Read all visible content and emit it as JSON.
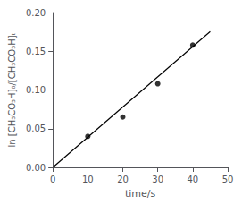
{
  "chart_data": {
    "type": "scatter",
    "xlabel": "time/s",
    "ylabel": "ln [CH₃CO₃H]₀/[CH₃CO₃H]ₜ",
    "series": [
      {
        "type": "line",
        "color": "#000000",
        "x": [
          0,
          45
        ],
        "values": [
          0.0,
          0.1755
        ]
      },
      {
        "type": "scatter",
        "color": "#000000",
        "x": [
          10,
          20,
          30,
          40
        ],
        "values": [
          0.04,
          0.065,
          0.108,
          0.158
        ]
      }
    ],
    "xlim": [
      0,
      50
    ],
    "ylim": [
      0.0,
      0.2
    ],
    "xticks": [
      0,
      10,
      20,
      30,
      40,
      50
    ],
    "yticks": [
      {
        "value": 0.0,
        "label": "0.00"
      },
      0.05,
      {
        "value": 0.1,
        "label": "0.10"
      },
      0.15,
      {
        "value": 0.2,
        "label": "0.20"
      }
    ],
    "grid": false
  }
}
